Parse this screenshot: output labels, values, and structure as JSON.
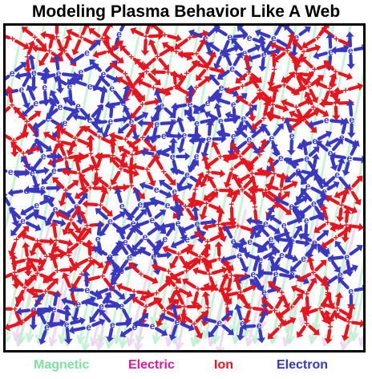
{
  "title": "Modeling Plasma Behavior Like A Web",
  "legend": {
    "magnetic": {
      "label": "Magnetic",
      "color": "#7fe0a0"
    },
    "electric": {
      "label": "Electric",
      "color": "#e0189a"
    },
    "ion": {
      "label": "Ion",
      "color": "#e8141e"
    },
    "electron": {
      "label": "Electron",
      "color": "#3a38c2"
    }
  },
  "diagram": {
    "ion_symbol": "+",
    "electron_symbol": "e",
    "ion_color": "#e8141e",
    "electron_color": "#3a38c2",
    "magnetic_field_color": "#bff0cf",
    "electric_field_color": "#ecd3f2"
  }
}
